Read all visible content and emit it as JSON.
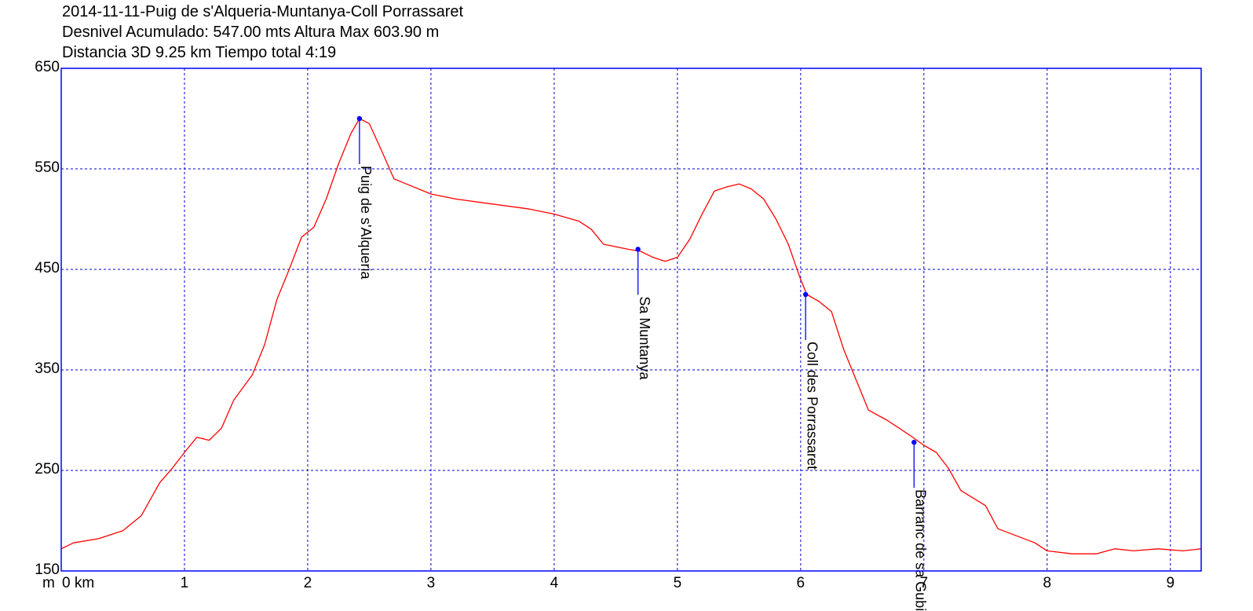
{
  "header": {
    "line1": "2014-11-11-Puig de s'Alqueria-Muntanya-Coll Porrassaret",
    "line2": "Desnivel Acumulado: 547.00 mts  Altura Max 603.90 m",
    "line3": "Distancia 3D 9.25 km  Tiempo total 4:19"
  },
  "chart_data": {
    "type": "line",
    "title": "2014-11-11-Puig de s'Alqueria-Muntanya-Coll Porrassaret",
    "xlabel": "km",
    "ylabel": "m",
    "xlim": [
      0,
      9.25
    ],
    "ylim": [
      150,
      650
    ],
    "x_ticks": [
      0,
      1,
      2,
      3,
      4,
      5,
      6,
      7,
      8,
      9
    ],
    "x_tick_labels": [
      "0 km",
      "1",
      "2",
      "3",
      "4",
      "5",
      "6",
      "7",
      "8",
      "9"
    ],
    "y_ticks": [
      150,
      250,
      350,
      450,
      550,
      650
    ],
    "y_tick_labels": [
      "150",
      "250",
      "350",
      "450",
      "550",
      "650"
    ],
    "grid": true,
    "line_color": "#ff0000",
    "grid_color": "#0000cc",
    "series": [
      {
        "x": [
          0,
          0.1,
          0.3,
          0.5,
          0.65,
          0.8,
          0.9,
          1.0,
          1.1,
          1.2,
          1.3,
          1.4,
          1.55,
          1.65,
          1.75,
          1.85,
          1.95,
          2.05,
          2.15,
          2.25,
          2.35,
          2.42,
          2.5,
          2.6,
          2.7,
          2.8,
          3.0,
          3.2,
          3.5,
          3.8,
          4.0,
          4.2,
          4.3,
          4.4,
          4.6,
          4.7,
          4.8,
          4.9,
          5.0,
          5.1,
          5.2,
          5.3,
          5.4,
          5.5,
          5.6,
          5.7,
          5.8,
          5.9,
          6.0,
          6.05,
          6.15,
          6.25,
          6.35,
          6.45,
          6.55,
          6.7,
          6.8,
          6.92,
          7.0,
          7.1,
          7.2,
          7.3,
          7.5,
          7.6,
          7.75,
          7.9,
          8.0,
          8.2,
          8.4,
          8.55,
          8.7,
          8.9,
          9.1,
          9.25
        ],
        "values": [
          172,
          178,
          182,
          190,
          205,
          238,
          252,
          268,
          283,
          280,
          292,
          320,
          345,
          375,
          420,
          450,
          482,
          492,
          520,
          555,
          585,
          600,
          595,
          568,
          540,
          535,
          525,
          520,
          515,
          510,
          505,
          498,
          490,
          475,
          470,
          468,
          462,
          458,
          462,
          480,
          505,
          528,
          532,
          535,
          530,
          520,
          500,
          475,
          440,
          425,
          418,
          408,
          370,
          340,
          310,
          300,
          292,
          282,
          275,
          268,
          252,
          230,
          215,
          192,
          185,
          178,
          170,
          167,
          167,
          172,
          170,
          172,
          170,
          172
        ]
      }
    ],
    "waypoints": [
      {
        "name": "Puig de s'Alqueria",
        "x": 2.42,
        "y": 600
      },
      {
        "name": "Sa Muntanya",
        "x": 4.68,
        "y": 470
      },
      {
        "name": "Coll des Porrassaret",
        "x": 6.04,
        "y": 425
      },
      {
        "name": "Barranc de sa Gubia",
        "x": 6.92,
        "y": 278
      }
    ]
  }
}
